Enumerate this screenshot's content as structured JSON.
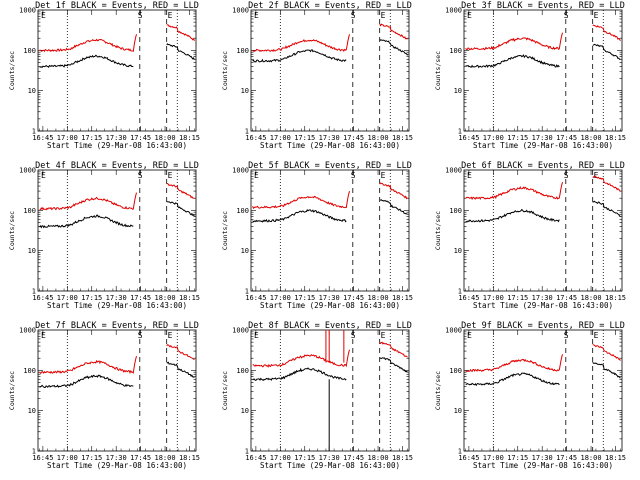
{
  "chart_data": {
    "type": "line",
    "yscale": "log",
    "ylim": [
      1,
      1000
    ],
    "y_ticks": [
      "1",
      "10",
      "100",
      "1000"
    ],
    "ylabel": "Counts/sec",
    "xlabel": "Start Time (29-Mar-08 16:43:00)",
    "x_range_minutes": [
      -1,
      96
    ],
    "x_ticks": [
      {
        "label": "16:45",
        "min": 2
      },
      {
        "label": "17:00",
        "min": 17
      },
      {
        "label": "17:15",
        "min": 32
      },
      {
        "label": "17:30",
        "min": 47
      },
      {
        "label": "17:45",
        "min": 62
      },
      {
        "label": "18:00",
        "min": 77
      },
      {
        "label": "18:15",
        "min": 92
      }
    ],
    "marker_labels": {
      "start": "S",
      "end": "E"
    },
    "panels": [
      {
        "title": "Det 1f BLACK = Events, RED = LLD",
        "base_red": 100,
        "base_black": 40,
        "gap_red": [
          58,
          60
        ],
        "spike_red": [],
        "dips_black": [],
        "s_line": 61.5,
        "e_line": 78,
        "e_dot": 84.5,
        "post_red": 300,
        "post_black": 100
      },
      {
        "title": "Det 2f BLACK = Events, RED = LLD",
        "base_red": 100,
        "base_black": 55,
        "gap_red": [
          58,
          60
        ],
        "spike_red": [],
        "dips_black": [],
        "s_line": 61.5,
        "e_line": 78,
        "e_dot": 84.5,
        "post_red": 310,
        "post_black": 130
      },
      {
        "title": "Det 3f BLACK = Events, RED = LLD",
        "base_red": 110,
        "base_black": 40,
        "gap_red": [
          58,
          60
        ],
        "spike_red": [],
        "dips_black": [],
        "s_line": 61.5,
        "e_line": 78,
        "e_dot": 84.5,
        "post_red": 300,
        "post_black": 100
      },
      {
        "title": "Det 4f BLACK = Events, RED = LLD",
        "base_red": 110,
        "base_black": 40,
        "gap_red": [
          58,
          60
        ],
        "spike_red": [],
        "dips_black": [],
        "s_line": 61.5,
        "e_line": 78,
        "e_dot": 84.5,
        "post_red": 320,
        "post_black": 120
      },
      {
        "title": "Det 5f BLACK = Events, RED = LLD",
        "base_red": 120,
        "base_black": 55,
        "gap_red": [
          58,
          60
        ],
        "spike_red": [],
        "dips_black": [],
        "s_line": 61.5,
        "e_line": 78,
        "e_dot": 84.5,
        "post_red": 330,
        "post_black": 130
      },
      {
        "title": "Det 6f BLACK = Events, RED = LLD",
        "base_red": 200,
        "base_black": 55,
        "gap_red": [
          58,
          60
        ],
        "spike_red": [],
        "dips_black": [],
        "s_line": 61.5,
        "e_line": 78,
        "e_dot": 84.5,
        "post_red": 500,
        "post_black": 120
      },
      {
        "title": "Det 7f BLACK = Events, RED = LLD",
        "base_red": 90,
        "base_black": 40,
        "gap_red": [
          58,
          60
        ],
        "spike_red": [],
        "dips_black": [],
        "s_line": 61.5,
        "e_line": 78,
        "e_dot": 84.5,
        "post_red": 300,
        "post_black": 110
      },
      {
        "title": "Det 8f BLACK = Events, RED = LLD",
        "base_red": 130,
        "base_black": 60,
        "gap_red": [
          58,
          60
        ],
        "spike_red": [
          45,
          47,
          56
        ],
        "dips_black": [
          47
        ],
        "s_line": 61.5,
        "e_line": 78,
        "e_dot": 84.5,
        "post_red": 350,
        "post_black": 150
      },
      {
        "title": "Det 9f BLACK = Events, RED = LLD",
        "base_red": 100,
        "base_black": 45,
        "gap_red": [
          58,
          60
        ],
        "spike_red": [],
        "dips_black": [],
        "s_line": 61.5,
        "e_line": 78,
        "e_dot": 84.5,
        "post_red": 300,
        "post_black": 110
      }
    ]
  }
}
